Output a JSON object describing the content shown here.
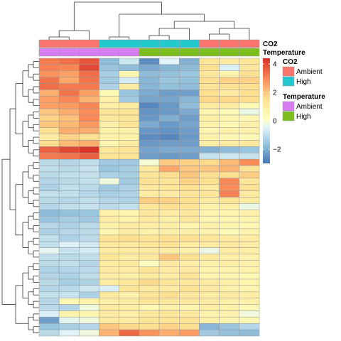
{
  "chart_data": {
    "type": "heatmap",
    "n_rows": 44,
    "columns": [
      {
        "co2": "Ambient",
        "temperature": "Ambient"
      },
      {
        "co2": "Ambient",
        "temperature": "Ambient"
      },
      {
        "co2": "Ambient",
        "temperature": "Ambient"
      },
      {
        "co2": "High",
        "temperature": "Ambient"
      },
      {
        "co2": "High",
        "temperature": "Ambient"
      },
      {
        "co2": "High",
        "temperature": "High"
      },
      {
        "co2": "High",
        "temperature": "High"
      },
      {
        "co2": "High",
        "temperature": "High"
      },
      {
        "co2": "Ambient",
        "temperature": "High"
      },
      {
        "co2": "Ambient",
        "temperature": "High"
      },
      {
        "co2": "Ambient",
        "temperature": "High"
      }
    ],
    "values": [
      [
        3.2,
        3.4,
        3.8,
        -1.8,
        -0.8,
        -2.6,
        -0.5,
        -2.0,
        1.3,
        1.0,
        1.3
      ],
      [
        3.1,
        3.0,
        4.0,
        -1.6,
        -1.8,
        -2.1,
        -1.9,
        -1.8,
        1.5,
        -0.6,
        1.2
      ],
      [
        2.8,
        2.6,
        3.4,
        -1.4,
        0.6,
        -1.8,
        -1.7,
        -1.6,
        1.2,
        0.7,
        1.5
      ],
      [
        3.3,
        2.5,
        3.3,
        -1.5,
        -0.7,
        -1.9,
        -1.6,
        -1.7,
        1.6,
        1.8,
        1.8
      ],
      [
        3.4,
        3.2,
        3.2,
        -1.3,
        1.0,
        -1.9,
        -1.7,
        -1.8,
        1.4,
        1.5,
        1.6
      ],
      [
        2.4,
        3.3,
        2.6,
        0.4,
        -1.6,
        -2.1,
        -2.3,
        -2.3,
        1.6,
        1.0,
        1.6
      ],
      [
        2.6,
        3.0,
        2.3,
        0.8,
        -1.5,
        -2.2,
        -2.2,
        -1.9,
        1.7,
        1.7,
        1.6
      ],
      [
        2.6,
        2.7,
        3.0,
        0.9,
        1.0,
        -2.7,
        -2.4,
        -1.8,
        1.0,
        1.1,
        0.4
      ],
      [
        2.0,
        2.4,
        2.9,
        1.3,
        1.3,
        -2.5,
        -2.4,
        -2.1,
        0.6,
        0.4,
        -0.3
      ],
      [
        1.8,
        2.1,
        3.0,
        1.2,
        1.3,
        -2.4,
        -2.0,
        -2.3,
        0.9,
        0.6,
        0.5
      ],
      [
        2.0,
        2.2,
        2.7,
        0.8,
        1.4,
        -2.1,
        -2.4,
        -2.2,
        0.7,
        0.5,
        0.8
      ],
      [
        1.5,
        2.4,
        2.4,
        0.8,
        0.8,
        -2.4,
        -2.5,
        -2.3,
        0.6,
        0.8,
        0.8
      ],
      [
        1.0,
        1.8,
        1.6,
        0.7,
        0.8,
        -2.6,
        -2.7,
        -2.4,
        0.8,
        0.5,
        0.4
      ],
      [
        1.6,
        2.2,
        2.4,
        0.5,
        1.0,
        -2.4,
        -2.3,
        -2.3,
        0.9,
        1.1,
        1.1
      ],
      [
        3.6,
        4.0,
        4.3,
        1.3,
        1.4,
        -2.2,
        -2.1,
        -2.1,
        -2.0,
        -1.8,
        -1.6
      ],
      [
        3.2,
        3.3,
        3.6,
        1.4,
        1.3,
        -2.3,
        -2.4,
        -2.3,
        -0.9,
        -0.8,
        -0.9
      ],
      [
        -1.1,
        -1.2,
        -1.0,
        -1.5,
        -1.5,
        -0.1,
        1.9,
        1.8,
        1.7,
        2.2,
        2.9
      ],
      [
        -1.0,
        -1.1,
        -0.9,
        -1.6,
        -1.4,
        1.2,
        2.5,
        2.0,
        2.0,
        2.3,
        1.4
      ],
      [
        -1.1,
        -1.0,
        -0.9,
        -1.3,
        -1.4,
        1.3,
        1.6,
        2.0,
        1.6,
        1.6,
        1.9
      ],
      [
        -1.2,
        -1.1,
        -1.0,
        -0.2,
        -1.5,
        1.5,
        1.4,
        1.8,
        1.6,
        3.0,
        1.3
      ],
      [
        -1.3,
        -1.0,
        -1.1,
        -1.5,
        -1.3,
        1.2,
        1.3,
        1.6,
        1.2,
        2.9,
        1.5
      ],
      [
        -1.0,
        -1.0,
        -1.2,
        -1.4,
        -1.3,
        1.0,
        1.1,
        1.4,
        1.3,
        3.1,
        1.1
      ],
      [
        -1.1,
        -1.2,
        -1.0,
        -1.2,
        -1.3,
        1.9,
        1.8,
        1.6,
        1.1,
        1.3,
        1.0
      ],
      [
        -1.2,
        -1.0,
        -0.9,
        -1.1,
        -1.0,
        1.3,
        1.6,
        1.5,
        0.8,
        0.9,
        -0.3
      ],
      [
        -1.8,
        -1.7,
        -1.6,
        0.8,
        0.6,
        1.2,
        1.0,
        1.2,
        0.6,
        0.6,
        0.8
      ],
      [
        -1.6,
        -1.4,
        -1.5,
        0.9,
        0.7,
        1.1,
        0.8,
        1.2,
        0.5,
        0.5,
        0.6
      ],
      [
        -1.2,
        -1.3,
        -1.1,
        0.8,
        1.0,
        0.9,
        0.9,
        0.6,
        0.8,
        0.6,
        0.5
      ],
      [
        -1.3,
        -1.2,
        -1.1,
        0.5,
        0.9,
        0.7,
        0.8,
        0.8,
        0.6,
        0.3,
        0.6
      ],
      [
        -1.0,
        -1.3,
        -1.1,
        1.5,
        1.6,
        1.4,
        1.6,
        1.6,
        1.3,
        1.1,
        1.0
      ],
      [
        -1.0,
        -0.6,
        -0.8,
        1.2,
        1.2,
        1.3,
        1.5,
        1.1,
        1.1,
        1.2,
        1.1
      ],
      [
        -0.4,
        -0.9,
        -0.7,
        1.0,
        1.1,
        1.0,
        1.0,
        0.8,
        -0.3,
        1.0,
        0.9
      ],
      [
        -1.0,
        -1.1,
        -1.0,
        1.3,
        1.0,
        1.2,
        2.0,
        1.5,
        1.2,
        0.9,
        0.8
      ],
      [
        -1.1,
        -1.0,
        -1.2,
        1.0,
        1.1,
        0.1,
        1.1,
        0.9,
        0.7,
        0.9,
        0.8
      ],
      [
        -1.3,
        -1.2,
        -1.1,
        1.1,
        1.0,
        1.3,
        1.0,
        1.1,
        0.6,
        0.6,
        0.7
      ],
      [
        -1.2,
        -1.3,
        -1.0,
        0.9,
        0.8,
        1.0,
        0.9,
        1.4,
        0.6,
        0.5,
        0.4
      ],
      [
        -1.1,
        -1.4,
        -1.3,
        1.0,
        1.2,
        1.7,
        1.3,
        1.2,
        1.0,
        0.8,
        0.6
      ],
      [
        -1.2,
        -1.1,
        -0.8,
        -0.6,
        1.3,
        1.1,
        1.0,
        1.5,
        1.1,
        0.8,
        0.6
      ],
      [
        -1.0,
        -0.9,
        -1.3,
        1.2,
        0.8,
        1.4,
        1.6,
        1.2,
        1.0,
        1.1,
        0.9
      ],
      [
        -1.2,
        0.5,
        0.7,
        0.9,
        1.0,
        1.3,
        1.2,
        1.2,
        1.1,
        0.9,
        0.8
      ],
      [
        -1.1,
        -1.2,
        -0.2,
        1.1,
        0.9,
        0.5,
        0.8,
        0.6,
        0.9,
        0.7,
        0.4
      ],
      [
        -0.6,
        0.7,
        0.6,
        1.1,
        0.9,
        1.2,
        1.3,
        1.2,
        0.7,
        0.8,
        -0.2
      ],
      [
        -2.3,
        -0.4,
        -0.2,
        1.0,
        0.9,
        1.3,
        1.3,
        1.4,
        0.8,
        0.6,
        0.4
      ],
      [
        -1.6,
        -1.4,
        -1.2,
        2.0,
        1.7,
        1.6,
        1.8,
        1.6,
        -1.9,
        -1.6,
        -1.2
      ],
      [
        -1.1,
        -0.5,
        -0.2,
        2.3,
        3.5,
        2.8,
        2.4,
        2.7,
        -1.5,
        -1.7,
        -1.8
      ]
    ],
    "color_scale": {
      "min": -3.0,
      "max": 4.4,
      "ticks": [
        4,
        2,
        0,
        -2
      ]
    },
    "annotation_rows": [
      "CO2",
      "Temperature"
    ],
    "legend": {
      "co2": {
        "title": "CO2",
        "levels": [
          {
            "label": "Ambient",
            "color": "#F8766D"
          },
          {
            "label": "High",
            "color": "#24C8CF"
          }
        ]
      },
      "temperature": {
        "title": "Temperature",
        "levels": [
          {
            "label": "Ambient",
            "color": "#D67EF0"
          },
          {
            "label": "High",
            "color": "#7CBE1E"
          }
        ]
      }
    },
    "grid": true
  }
}
